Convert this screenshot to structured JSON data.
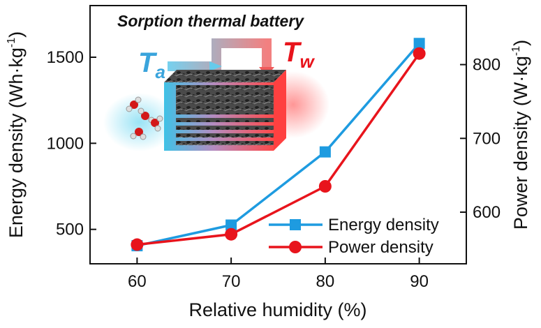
{
  "chart_data": {
    "type": "line",
    "title": "",
    "x": [
      60,
      70,
      80,
      90
    ],
    "xlabel": "Relative humidity (%)",
    "xlim": [
      55,
      95
    ],
    "xticks": [
      60,
      70,
      80,
      90
    ],
    "series": [
      {
        "name": "Energy density",
        "axis": "left",
        "marker": "square",
        "color": "#1e9be0",
        "values": [
          405,
          525,
          950,
          1580
        ]
      },
      {
        "name": "Power density",
        "axis": "right",
        "marker": "circle",
        "color": "#e8141c",
        "values": [
          556,
          570,
          635,
          815
        ]
      }
    ],
    "ylabel_left": {
      "main": "Energy density (Wh·kg",
      "sup": "-1",
      "end": ")"
    },
    "ylim_left": [
      300,
      1800
    ],
    "yticks_left": [
      500,
      1000,
      1500
    ],
    "ylabel_right": {
      "main": "Power density (W·kg",
      "sup": "-1",
      "end": ")"
    },
    "ylim_right": [
      530,
      880
    ],
    "yticks_right": [
      600,
      700,
      800
    ],
    "legend": {
      "position": "bottom-right",
      "entries": [
        "Energy density",
        "Power density"
      ]
    },
    "inset": {
      "title": "Sorption thermal battery",
      "inlet_label": {
        "main": "T",
        "sub": "a"
      },
      "outlet_label": {
        "main": "T",
        "sub": "w"
      },
      "inlet_color": "#3aa4dc",
      "outlet_color": "#e8141c"
    },
    "grid": false
  }
}
